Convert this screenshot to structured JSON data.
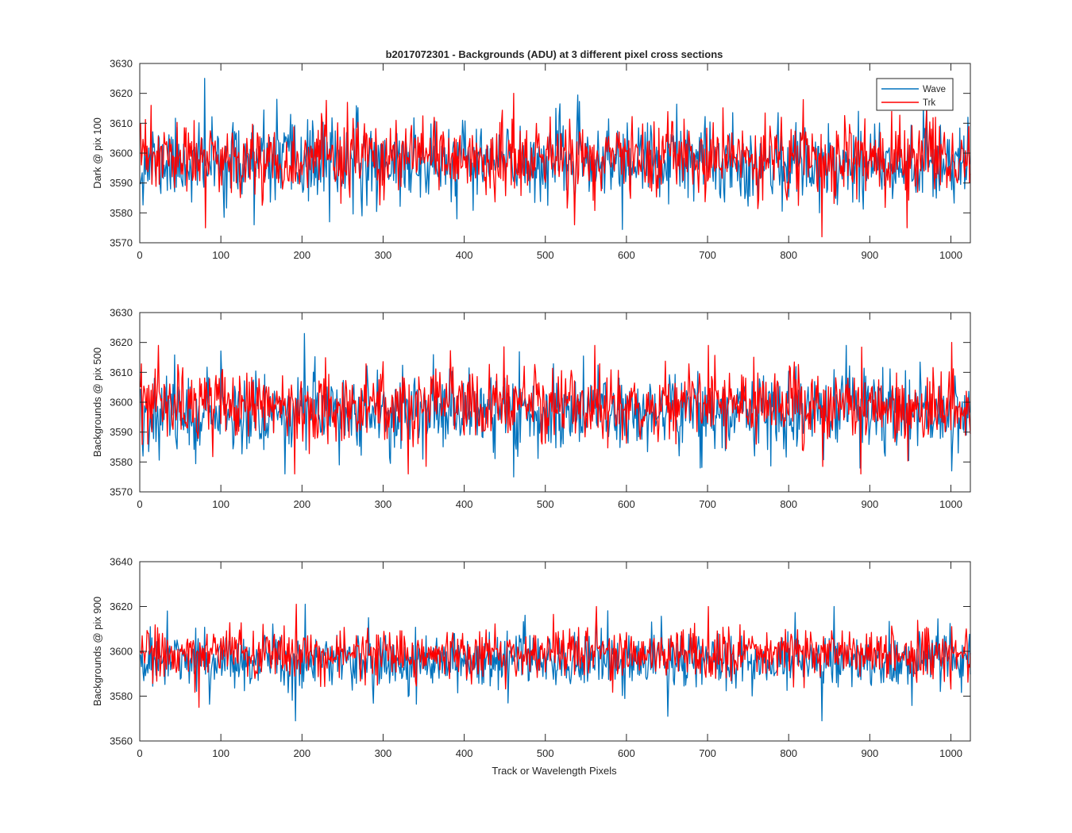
{
  "figure": {
    "title": "b2017072301 - Backgrounds (ADU) at 3 different pixel cross sections",
    "xlabel": "Track or Wavelength Pixels"
  },
  "legend": {
    "placement": "top-right",
    "items": [
      {
        "label": "Wave",
        "color": "#0072BD"
      },
      {
        "label": "Trk",
        "color": "#FF0000"
      }
    ]
  },
  "chart_data": [
    {
      "type": "line",
      "title": "b2017072301 - Backgrounds (ADU) at 3 different pixel cross sections",
      "xlabel": "",
      "ylabel": "Dark @ pix 100",
      "xlim": [
        0,
        1024
      ],
      "ylim": [
        3570,
        3630
      ],
      "xticks": [
        0,
        100,
        200,
        300,
        400,
        500,
        600,
        700,
        800,
        900,
        1000
      ],
      "yticks": [
        3570,
        3580,
        3590,
        3600,
        3610,
        3620,
        3630
      ],
      "grid": false,
      "series": [
        {
          "name": "Wave",
          "color": "#0072BD",
          "mean": 3597,
          "sd": 6.5,
          "seed": 11,
          "spikes": [
            [
              79,
              3625
            ],
            [
              140,
              3576
            ],
            [
              168,
              3618
            ],
            [
              233,
              3577
            ],
            [
              273,
              3579
            ],
            [
              390,
              3578
            ],
            [
              512,
              3615
            ],
            [
              885,
              3614
            ],
            [
              965,
              3616
            ],
            [
              1020,
              3612
            ]
          ]
        },
        {
          "name": "Trk",
          "color": "#FF0000",
          "mean": 3598,
          "sd": 6,
          "seed": 23,
          "spikes": [
            [
              13,
              3616
            ],
            [
              80,
              3575
            ],
            [
              255,
              3617
            ],
            [
              460,
              3620
            ],
            [
              535,
              3576
            ],
            [
              790,
              3612
            ],
            [
              840,
              3572
            ],
            [
              945,
              3575
            ],
            [
              980,
              3612
            ]
          ]
        }
      ]
    },
    {
      "type": "line",
      "title": "",
      "xlabel": "",
      "ylabel": "Backgrounds @ pix 500",
      "xlim": [
        0,
        1024
      ],
      "ylim": [
        3570,
        3630
      ],
      "xticks": [
        0,
        100,
        200,
        300,
        400,
        500,
        600,
        700,
        800,
        900,
        1000
      ],
      "yticks": [
        3570,
        3580,
        3590,
        3600,
        3610,
        3620,
        3630
      ],
      "grid": false,
      "series": [
        {
          "name": "Wave",
          "color": "#0072BD",
          "mean": 3597,
          "sd": 6.5,
          "seed": 37,
          "spikes": [
            [
              3,
              3582
            ],
            [
              178,
              3576
            ],
            [
              202,
              3623
            ],
            [
              460,
              3575
            ],
            [
              690,
              3578
            ],
            [
              870,
              3619
            ],
            [
              1000,
              3577
            ]
          ]
        },
        {
          "name": "Trk",
          "color": "#FF0000",
          "mean": 3599,
          "sd": 6,
          "seed": 53,
          "spikes": [
            [
              22,
              3619
            ],
            [
              190,
              3576
            ],
            [
              330,
              3576
            ],
            [
              560,
              3619
            ],
            [
              700,
              3619
            ],
            [
              888,
              3576
            ],
            [
              1000,
              3620
            ]
          ]
        }
      ]
    },
    {
      "type": "line",
      "title": "",
      "xlabel": "Track or Wavelength Pixels",
      "ylabel": "Backgrounds @ pix 900",
      "xlim": [
        0,
        1024
      ],
      "ylim": [
        3560,
        3640
      ],
      "xticks": [
        0,
        100,
        200,
        300,
        400,
        500,
        600,
        700,
        800,
        900,
        1000
      ],
      "yticks": [
        3560,
        3580,
        3600,
        3620,
        3640
      ],
      "grid": false,
      "series": [
        {
          "name": "Wave",
          "color": "#0072BD",
          "mean": 3596,
          "sd": 6.5,
          "seed": 71,
          "spikes": [
            [
              33,
              3618
            ],
            [
              191,
              3569
            ],
            [
              203,
              3621
            ],
            [
              650,
              3571
            ],
            [
              840,
              3569
            ],
            [
              855,
              3620
            ]
          ]
        },
        {
          "name": "Trk",
          "color": "#FF0000",
          "mean": 3599,
          "sd": 5.5,
          "seed": 89,
          "spikes": [
            [
              72,
              3575
            ],
            [
              192,
              3621
            ],
            [
              562,
              3620
            ],
            [
              700,
              3620
            ],
            [
              1000,
              3611
            ],
            [
              1018,
              3610
            ]
          ]
        }
      ]
    }
  ]
}
